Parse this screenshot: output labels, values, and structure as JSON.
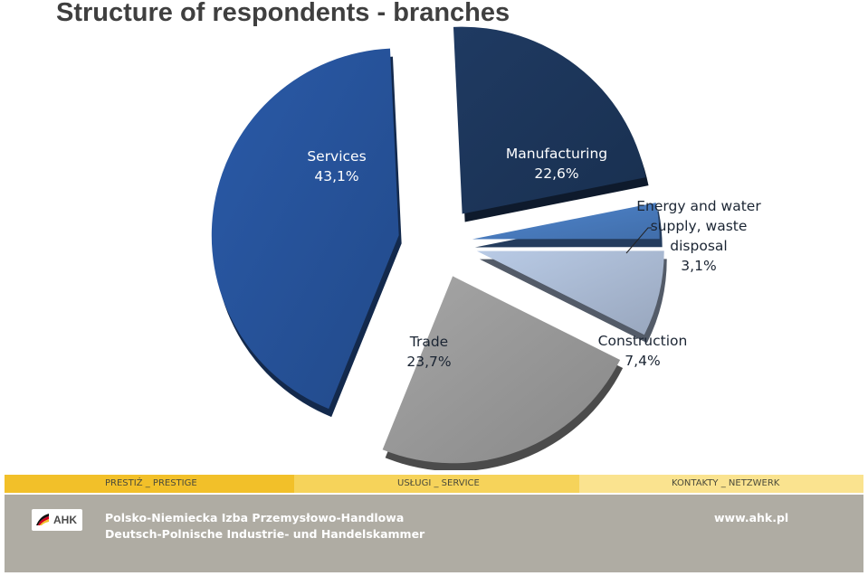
{
  "title": "Structure of respondents - branches",
  "chart_data": {
    "type": "pie",
    "title": "Structure of respondents - branches",
    "categories": [
      "Services",
      "Manufacturing",
      "Energy and water supply, waste disposal",
      "Construction",
      "Trade"
    ],
    "values": [
      43.1,
      22.6,
      3.1,
      7.4,
      23.7
    ],
    "series": [
      {
        "slices": [
          {
            "label_lines": [
              "Services"
            ],
            "value_text": "43,1%",
            "value": 43.1,
            "color": "#2a5aa8"
          },
          {
            "label_lines": [
              "Manufacturing"
            ],
            "value_text": "22,6%",
            "value": 22.6,
            "color": "#1f3a62"
          },
          {
            "label_lines": [
              "Energy and water",
              "supply, waste",
              "disposal"
            ],
            "value_text": "3,1%",
            "value": 3.1,
            "color": "#4f86cf"
          },
          {
            "label_lines": [
              "Construction"
            ],
            "value_text": "7,4%",
            "value": 7.4,
            "color": "#b9cbe6"
          },
          {
            "label_lines": [
              "Trade"
            ],
            "value_text": "23,7%",
            "value": 23.7,
            "color": "#a6a6a6"
          }
        ]
      }
    ],
    "style": "exploded 3D pie"
  },
  "footer": {
    "tabs": [
      "PRESTIŻ _ PRESTIGE",
      "USŁUGI _ SERVICE",
      "KONTAKTY _ NETZWERK"
    ],
    "logo_text": "AHK",
    "org_name_pl": "Polsko-Niemiecka Izba Przemysłowo-Handlowa",
    "org_name_de": "Deutsch-Polnische Industrie- und Handelskammer",
    "url": "www.ahk.pl",
    "colors": {
      "tab1": "#f2c029",
      "tab2": "#f6d35a",
      "tab3": "#fae38f",
      "band": "#afaca3"
    }
  }
}
